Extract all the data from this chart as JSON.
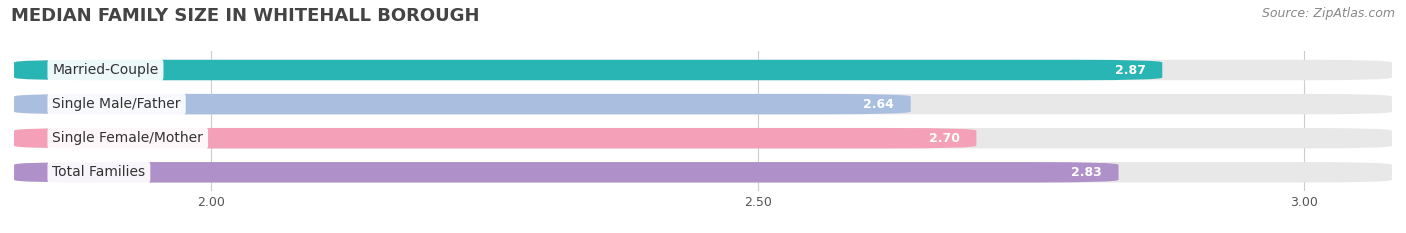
{
  "title": "MEDIAN FAMILY SIZE IN WHITEHALL BOROUGH",
  "source": "Source: ZipAtlas.com",
  "categories": [
    "Married-Couple",
    "Single Male/Father",
    "Single Female/Mother",
    "Total Families"
  ],
  "values": [
    2.87,
    2.64,
    2.7,
    2.83
  ],
  "bar_colors": [
    "#2ab5b5",
    "#aabfdf",
    "#f4a0b8",
    "#b090c8"
  ],
  "bar_bg_color": "#e8e8e8",
  "x_min": 1.82,
  "x_max": 3.08,
  "x_ticks": [
    2.0,
    2.5,
    3.0
  ],
  "x_tick_labels": [
    "2.00",
    "2.50",
    "3.00"
  ],
  "label_fontsize": 10,
  "value_fontsize": 9,
  "title_fontsize": 13,
  "source_fontsize": 9
}
